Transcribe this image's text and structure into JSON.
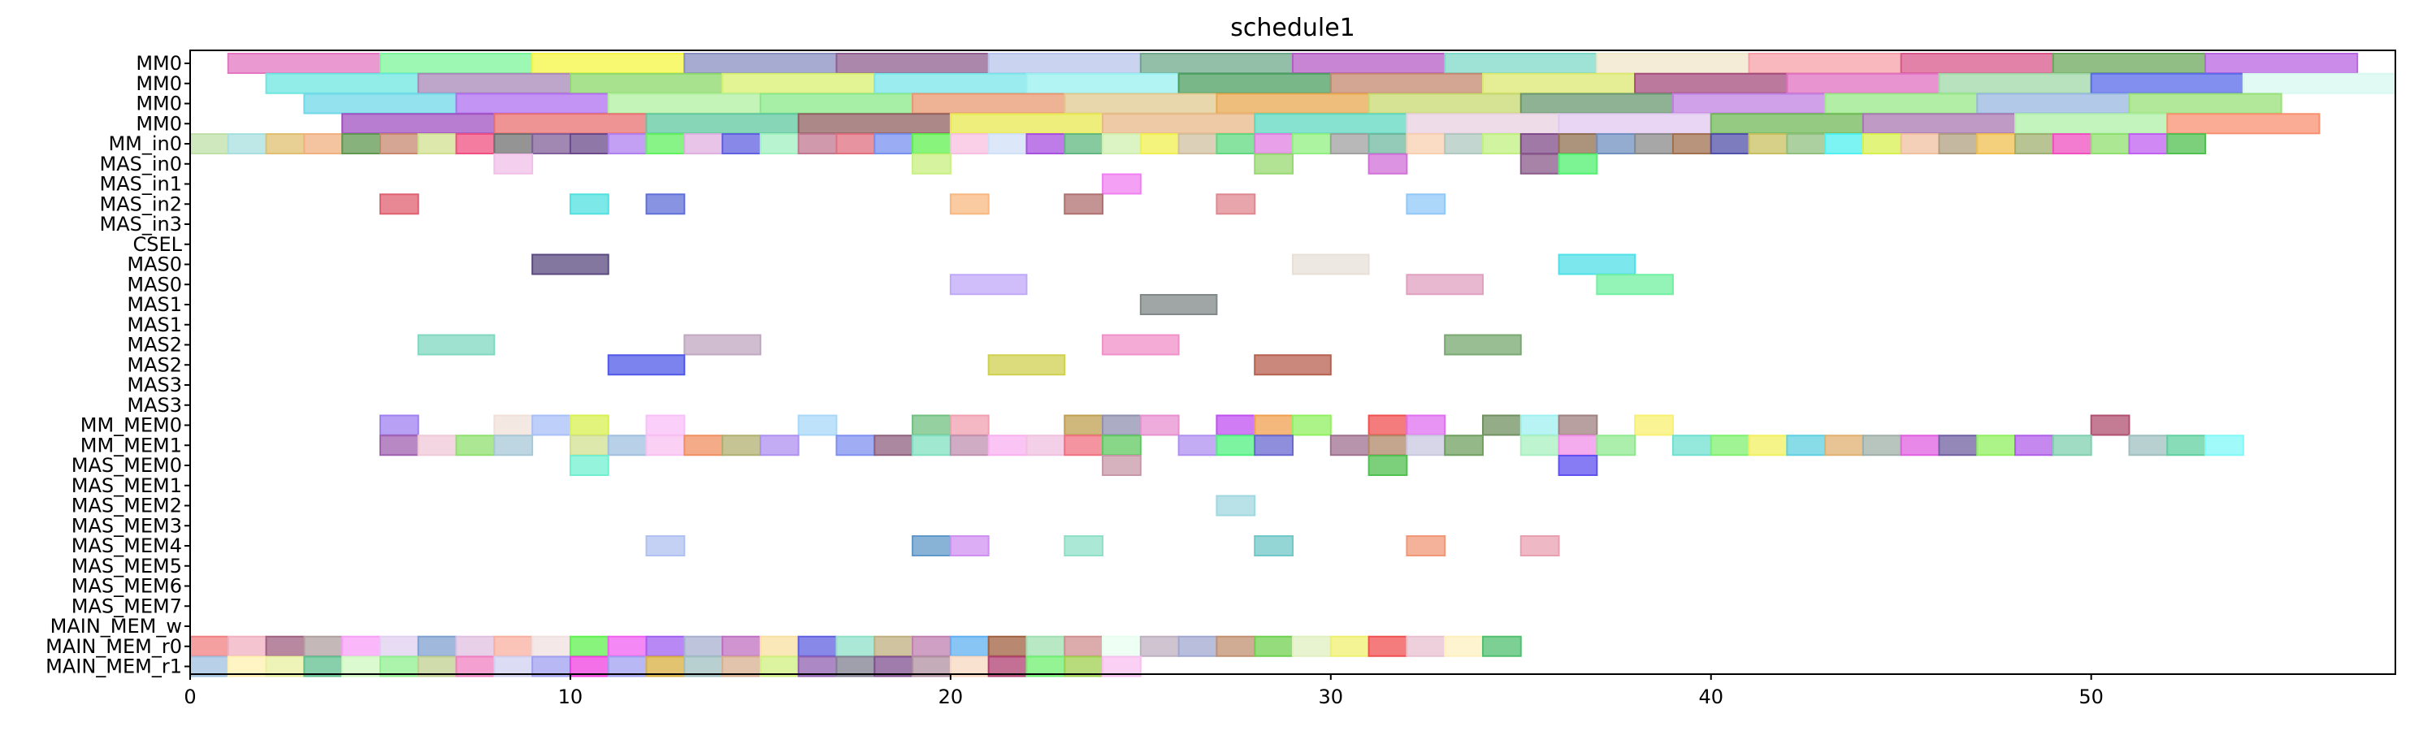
{
  "chart_data": {
    "type": "gantt",
    "title": "schedule1",
    "xlabel": "",
    "ylabel": "",
    "xlim": [
      0,
      58
    ],
    "xticks": [
      0,
      10,
      20,
      30,
      40,
      50
    ],
    "xtick_labels": [
      "0",
      "10",
      "20",
      "30",
      "40",
      "50"
    ],
    "rows": [
      "MM0",
      "MM0",
      "MM0",
      "MM0",
      "MM_in0",
      "MAS_in0",
      "MAS_in1",
      "MAS_in2",
      "MAS_in3",
      "CSEL",
      "MAS0",
      "MAS0",
      "MAS1",
      "MAS1",
      "MAS2",
      "MAS2",
      "MAS3",
      "MAS3",
      "MM_MEM0",
      "MM_MEM1",
      "MAS_MEM0",
      "MAS_MEM1",
      "MAS_MEM2",
      "MAS_MEM3",
      "MAS_MEM4",
      "MAS_MEM5",
      "MAS_MEM6",
      "MAS_MEM7",
      "MAIN_MEM_w",
      "MAIN_MEM_r0",
      "MAIN_MEM_r1"
    ],
    "bars": [
      [
        0,
        1,
        4,
        "#e377c2"
      ],
      [
        0,
        5,
        4,
        "#7cf59a"
      ],
      [
        0,
        9,
        4,
        "#f5f542"
      ],
      [
        0,
        13,
        4,
        "#8a8fc2"
      ],
      [
        0,
        17,
        4,
        "#8f5f8f"
      ],
      [
        0,
        21,
        4,
        "#b8c4ea"
      ],
      [
        0,
        25,
        4,
        "#6fa88a"
      ],
      [
        0,
        29,
        4,
        "#b55cc4"
      ],
      [
        0,
        33,
        4,
        "#7fd8c8"
      ],
      [
        0,
        37,
        4,
        "#f0e6c8"
      ],
      [
        0,
        41,
        4,
        "#f5a0a8"
      ],
      [
        0,
        45,
        4,
        "#d9588c"
      ],
      [
        0,
        49,
        4,
        "#6ca85c"
      ],
      [
        0,
        53,
        4,
        "#b865e0"
      ],
      [
        1,
        2,
        4,
        "#6ee6e0"
      ],
      [
        1,
        6,
        4,
        "#a888b8"
      ],
      [
        1,
        10,
        4,
        "#8cd868"
      ],
      [
        1,
        14,
        4,
        "#d8f070"
      ],
      [
        1,
        18,
        4,
        "#7ae6ea"
      ],
      [
        1,
        22,
        4,
        "#98f0f0"
      ],
      [
        1,
        26,
        4,
        "#4c9e60"
      ],
      [
        1,
        30,
        4,
        "#c48870"
      ],
      [
        1,
        34,
        4,
        "#dce870"
      ],
      [
        1,
        38,
        4,
        "#a44c7c"
      ],
      [
        1,
        42,
        4,
        "#e070c0"
      ],
      [
        1,
        46,
        4,
        "#a0d8a8"
      ],
      [
        1,
        50,
        4,
        "#5a6ae8"
      ],
      [
        1,
        54,
        4,
        "#d8f8f0"
      ],
      [
        2,
        3,
        4,
        "#70d8e8"
      ],
      [
        2,
        7,
        4,
        "#b070f0"
      ],
      [
        2,
        11,
        4,
        "#b0f0a0"
      ],
      [
        2,
        15,
        4,
        "#8ae88a"
      ],
      [
        2,
        19,
        4,
        "#e89870"
      ],
      [
        2,
        23,
        4,
        "#e0c890"
      ],
      [
        2,
        27,
        4,
        "#e8a850"
      ],
      [
        2,
        31,
        4,
        "#c8d870"
      ],
      [
        2,
        35,
        4,
        "#6a9870"
      ],
      [
        2,
        39,
        4,
        "#c080e0"
      ],
      [
        2,
        43,
        4,
        "#98e888"
      ],
      [
        2,
        47,
        4,
        "#98b8e0"
      ],
      [
        2,
        51,
        4,
        "#98e078"
      ],
      [
        3,
        4,
        4,
        "#a050c0"
      ],
      [
        3,
        8,
        4,
        "#e87070"
      ],
      [
        3,
        12,
        4,
        "#60c8a0"
      ],
      [
        3,
        16,
        4,
        "#906060"
      ],
      [
        3,
        20,
        4,
        "#e8e850"
      ],
      [
        3,
        24,
        4,
        "#e8b888"
      ],
      [
        3,
        28,
        4,
        "#60d8c0"
      ],
      [
        3,
        32,
        4,
        "#e8d0e0"
      ],
      [
        3,
        36,
        4,
        "#e0c8f0"
      ],
      [
        3,
        40,
        4,
        "#70b858"
      ],
      [
        3,
        44,
        4,
        "#a878b0"
      ],
      [
        3,
        48,
        4,
        "#b0f0a8"
      ],
      [
        3,
        52,
        4,
        "#f89070"
      ],
      [
        4,
        0,
        1,
        "#c0e0a8"
      ],
      [
        4,
        1,
        1,
        "#a8e0e0"
      ],
      [
        4,
        2,
        1,
        "#e0c070"
      ],
      [
        4,
        3,
        1,
        "#f0b080"
      ],
      [
        4,
        4,
        1,
        "#609850"
      ],
      [
        4,
        5,
        1,
        "#c88870"
      ],
      [
        4,
        6,
        1,
        "#d0e090"
      ],
      [
        4,
        7,
        1,
        "#f05080"
      ],
      [
        4,
        8,
        1,
        "#707070"
      ],
      [
        4,
        9,
        1,
        "#80609a"
      ],
      [
        4,
        10,
        1,
        "#6a4a8a"
      ],
      [
        4,
        11,
        1,
        "#b080f0"
      ],
      [
        4,
        12,
        1,
        "#60f060"
      ],
      [
        4,
        13,
        1,
        "#e0b0e0"
      ],
      [
        4,
        14,
        1,
        "#6060e0"
      ],
      [
        4,
        15,
        1,
        "#a0f0c0"
      ],
      [
        4,
        16,
        1,
        "#c07890"
      ],
      [
        4,
        17,
        1,
        "#e07080"
      ],
      [
        4,
        18,
        1,
        "#7890f0"
      ],
      [
        4,
        19,
        1,
        "#60f050"
      ],
      [
        4,
        20,
        1,
        "#f8c0e0"
      ],
      [
        4,
        21,
        1,
        "#d0e0f8"
      ],
      [
        4,
        22,
        1,
        "#a850e0"
      ],
      [
        4,
        23,
        1,
        "#60b880"
      ],
      [
        4,
        24,
        1,
        "#d0f0b0"
      ],
      [
        4,
        25,
        1,
        "#f0f050"
      ],
      [
        4,
        26,
        1,
        "#d0c0a0"
      ],
      [
        4,
        27,
        1,
        "#60d880"
      ],
      [
        4,
        28,
        1,
        "#e080e0"
      ],
      [
        4,
        29,
        1,
        "#90f080"
      ],
      [
        4,
        30,
        1,
        "#a0a0a0"
      ],
      [
        4,
        31,
        1,
        "#70b8a0"
      ],
      [
        4,
        32,
        1,
        "#f8d0b0"
      ],
      [
        4,
        33,
        1,
        "#b0c8c0"
      ],
      [
        4,
        34,
        1,
        "#c0f080"
      ],
      [
        4,
        35,
        1,
        "#804c8a"
      ],
      [
        4,
        36,
        1,
        "#907050"
      ],
      [
        4,
        37,
        1,
        "#7090c0"
      ],
      [
        4,
        38,
        1,
        "#8a8a8a"
      ],
      [
        4,
        39,
        1,
        "#a07050"
      ],
      [
        4,
        40,
        1,
        "#5050a8"
      ],
      [
        4,
        41,
        1,
        "#c8c060"
      ],
      [
        4,
        42,
        1,
        "#90c080"
      ],
      [
        4,
        43,
        1,
        "#50f0f0"
      ],
      [
        4,
        44,
        1,
        "#d8f050"
      ],
      [
        4,
        45,
        1,
        "#f0c0a0"
      ],
      [
        4,
        46,
        1,
        "#b0a080"
      ],
      [
        4,
        47,
        1,
        "#f0c050"
      ],
      [
        4,
        48,
        1,
        "#a0b070"
      ],
      [
        4,
        49,
        1,
        "#f050c0"
      ],
      [
        4,
        50,
        1,
        "#90e070"
      ],
      [
        4,
        51,
        1,
        "#c060f0"
      ],
      [
        4,
        52,
        1,
        "#50c050"
      ],
      [
        5,
        8,
        1,
        "#f0c0e8"
      ],
      [
        5,
        19,
        1,
        "#c8f080"
      ],
      [
        5,
        28,
        1,
        "#98d870"
      ],
      [
        5,
        31,
        1,
        "#d070d8"
      ],
      [
        5,
        35,
        1,
        "#8a5a8a"
      ],
      [
        5,
        36,
        1,
        "#50f070"
      ],
      [
        6,
        24,
        1,
        "#f080f0"
      ],
      [
        7,
        5,
        1,
        "#e06070"
      ],
      [
        7,
        10,
        1,
        "#50e0e0"
      ],
      [
        7,
        12,
        1,
        "#6070d8"
      ],
      [
        7,
        20,
        1,
        "#f8b880"
      ],
      [
        7,
        23,
        1,
        "#b07070"
      ],
      [
        7,
        27,
        1,
        "#e08890"
      ],
      [
        7,
        32,
        1,
        "#90c8f8"
      ],
      [
        10,
        9,
        2,
        "#5a4a80"
      ],
      [
        10,
        29,
        2,
        "#e8e0d8"
      ],
      [
        10,
        36,
        2,
        "#50e0e8"
      ],
      [
        11,
        20,
        2,
        "#c0a8f8"
      ],
      [
        11,
        32,
        2,
        "#e0a0c0"
      ],
      [
        11,
        37,
        2,
        "#70f0a0"
      ],
      [
        12,
        25,
        2,
        "#808888"
      ],
      [
        14,
        6,
        2,
        "#80d8c0"
      ],
      [
        14,
        13,
        2,
        "#c0a8c0"
      ],
      [
        14,
        24,
        2,
        "#f090c8"
      ],
      [
        14,
        33,
        2,
        "#78a870"
      ],
      [
        15,
        11,
        2,
        "#5058e8"
      ],
      [
        15,
        21,
        2,
        "#d0d050"
      ],
      [
        15,
        28,
        2,
        "#b86050"
      ],
      [
        18,
        5,
        1,
        "#a080f0"
      ],
      [
        18,
        8,
        1,
        "#f0e0d8"
      ],
      [
        18,
        9,
        1,
        "#a8c0f8"
      ],
      [
        18,
        10,
        1,
        "#d8f050"
      ],
      [
        18,
        12,
        1,
        "#f8c0f8"
      ],
      [
        18,
        16,
        1,
        "#a8d8f8"
      ],
      [
        18,
        19,
        1,
        "#70c080"
      ],
      [
        18,
        20,
        1,
        "#f0a0b0"
      ],
      [
        18,
        23,
        1,
        "#c0a050"
      ],
      [
        18,
        24,
        1,
        "#9090b0"
      ],
      [
        18,
        25,
        1,
        "#e890d0"
      ],
      [
        18,
        27,
        1,
        "#c050f0"
      ],
      [
        18,
        28,
        1,
        "#f0a050"
      ],
      [
        18,
        29,
        1,
        "#90f060"
      ],
      [
        18,
        31,
        1,
        "#f05050"
      ],
      [
        18,
        32,
        1,
        "#e070f0"
      ],
      [
        18,
        34,
        1,
        "#709060"
      ],
      [
        18,
        35,
        1,
        "#a0f0f0"
      ],
      [
        18,
        36,
        1,
        "#a08080"
      ],
      [
        18,
        38,
        1,
        "#f8f070"
      ],
      [
        18,
        50,
        1,
        "#b05070"
      ],
      [
        19,
        5,
        1,
        "#a060b0"
      ],
      [
        19,
        6,
        1,
        "#f0c8d8"
      ],
      [
        19,
        7,
        1,
        "#90e070"
      ],
      [
        19,
        8,
        1,
        "#a8c8d8"
      ],
      [
        19,
        10,
        1,
        "#d0e090"
      ],
      [
        19,
        11,
        1,
        "#a0c0e0"
      ],
      [
        19,
        12,
        1,
        "#f8c0f0"
      ],
      [
        19,
        13,
        1,
        "#f09060"
      ],
      [
        19,
        14,
        1,
        "#b0b070"
      ],
      [
        19,
        15,
        1,
        "#b090f0"
      ],
      [
        19,
        17,
        1,
        "#8090f0"
      ],
      [
        19,
        18,
        1,
        "#906080"
      ],
      [
        19,
        19,
        1,
        "#80e0c0"
      ],
      [
        19,
        20,
        1,
        "#c090b0"
      ],
      [
        19,
        21,
        1,
        "#f8b0f0"
      ],
      [
        19,
        22,
        1,
        "#f0c0e0"
      ],
      [
        19,
        23,
        1,
        "#f07080"
      ],
      [
        19,
        24,
        1,
        "#60c860"
      ],
      [
        19,
        26,
        1,
        "#b090f0"
      ],
      [
        19,
        27,
        1,
        "#50f080"
      ],
      [
        19,
        28,
        1,
        "#6868d0"
      ],
      [
        19,
        30,
        1,
        "#a07090"
      ],
      [
        19,
        31,
        1,
        "#b08868"
      ],
      [
        19,
        32,
        1,
        "#c8c8e0"
      ],
      [
        19,
        33,
        1,
        "#70a060"
      ],
      [
        19,
        35,
        1,
        "#a8f0c0"
      ],
      [
        19,
        36,
        1,
        "#f090e8"
      ],
      [
        19,
        37,
        1,
        "#90e890"
      ],
      [
        19,
        39,
        1,
        "#70e0d0"
      ],
      [
        19,
        40,
        1,
        "#80f070"
      ],
      [
        19,
        41,
        1,
        "#f0f060"
      ],
      [
        19,
        42,
        1,
        "#60d0e0"
      ],
      [
        19,
        43,
        1,
        "#e0b070"
      ],
      [
        19,
        44,
        1,
        "#a0b0a8"
      ],
      [
        19,
        45,
        1,
        "#e060e0"
      ],
      [
        19,
        46,
        1,
        "#7060a0"
      ],
      [
        19,
        47,
        1,
        "#90f060"
      ],
      [
        19,
        48,
        1,
        "#b060e8"
      ],
      [
        19,
        49,
        1,
        "#80d0b0"
      ],
      [
        19,
        51,
        1,
        "#a0c0c0"
      ],
      [
        19,
        52,
        1,
        "#60d0a0"
      ],
      [
        19,
        53,
        1,
        "#80f8f8"
      ],
      [
        20,
        10,
        1,
        "#70f0d0"
      ],
      [
        20,
        24,
        1,
        "#c898a8"
      ],
      [
        20,
        31,
        1,
        "#50c050"
      ],
      [
        20,
        36,
        1,
        "#6050f0"
      ],
      [
        22,
        27,
        1,
        "#a0d8e0"
      ],
      [
        24,
        12,
        1,
        "#b0c0f0"
      ],
      [
        24,
        19,
        1,
        "#6098c8"
      ],
      [
        24,
        20,
        1,
        "#d090f0"
      ],
      [
        24,
        23,
        1,
        "#90e0c8"
      ],
      [
        24,
        28,
        1,
        "#70c8c8"
      ],
      [
        24,
        32,
        1,
        "#f09878"
      ],
      [
        24,
        35,
        1,
        "#e8a0b0"
      ],
      [
        29,
        0,
        1,
        "#f08080"
      ],
      [
        29,
        1,
        1,
        "#f0b0c0"
      ],
      [
        29,
        2,
        1,
        "#a06080"
      ],
      [
        29,
        3,
        1,
        "#b0a0a0"
      ],
      [
        29,
        4,
        1,
        "#f8a0f8"
      ],
      [
        29,
        5,
        1,
        "#e0d0f0"
      ],
      [
        29,
        6,
        1,
        "#80a0d0"
      ],
      [
        29,
        7,
        1,
        "#e0c0e0"
      ],
      [
        29,
        8,
        1,
        "#f8b0a0"
      ],
      [
        29,
        9,
        1,
        "#f0e0e0"
      ],
      [
        29,
        10,
        1,
        "#60f050"
      ],
      [
        29,
        11,
        1,
        "#f060f0"
      ],
      [
        29,
        12,
        1,
        "#a060f0"
      ],
      [
        29,
        13,
        1,
        "#a8b0d0"
      ],
      [
        29,
        14,
        1,
        "#c070c0"
      ],
      [
        29,
        15,
        1,
        "#f8e0a0"
      ],
      [
        29,
        16,
        1,
        "#6060e0"
      ],
      [
        29,
        17,
        1,
        "#90e0c8"
      ],
      [
        29,
        18,
        1,
        "#c0b080"
      ],
      [
        29,
        19,
        1,
        "#c080b0"
      ],
      [
        29,
        20,
        1,
        "#60b0f0"
      ],
      [
        29,
        21,
        1,
        "#a06040"
      ],
      [
        29,
        22,
        1,
        "#a0e0b0"
      ],
      [
        29,
        23,
        1,
        "#d09090"
      ],
      [
        29,
        24,
        1,
        "#e8fff0"
      ],
      [
        29,
        25,
        1,
        "#c0b0c0"
      ],
      [
        29,
        26,
        1,
        "#a0a8d0"
      ],
      [
        29,
        27,
        1,
        "#c09070"
      ],
      [
        29,
        28,
        1,
        "#70d050"
      ],
      [
        29,
        29,
        1,
        "#e0f0c0"
      ],
      [
        29,
        30,
        1,
        "#f0f070"
      ],
      [
        29,
        31,
        1,
        "#f05050"
      ],
      [
        29,
        32,
        1,
        "#e8c0d0"
      ],
      [
        29,
        33,
        1,
        "#fff0c0"
      ],
      [
        29,
        34,
        1,
        "#50c070"
      ],
      [
        30,
        0,
        1,
        "#a0c0e0"
      ],
      [
        30,
        1,
        1,
        "#fff0b0"
      ],
      [
        30,
        2,
        1,
        "#e8f0a0"
      ],
      [
        30,
        3,
        1,
        "#60c090"
      ],
      [
        30,
        4,
        1,
        "#d0f8c0"
      ],
      [
        30,
        5,
        1,
        "#90f090"
      ],
      [
        30,
        6,
        1,
        "#c0d090"
      ],
      [
        30,
        7,
        1,
        "#f080c0"
      ],
      [
        30,
        8,
        1,
        "#d0d0f0"
      ],
      [
        30,
        9,
        1,
        "#a0a0f0"
      ],
      [
        30,
        10,
        1,
        "#f040e0"
      ],
      [
        30,
        11,
        1,
        "#a0a0f0"
      ],
      [
        30,
        12,
        1,
        "#d8b040"
      ],
      [
        30,
        13,
        1,
        "#a0c0c0"
      ],
      [
        30,
        14,
        1,
        "#d8b090"
      ],
      [
        30,
        15,
        1,
        "#d0f080"
      ],
      [
        30,
        16,
        1,
        "#9060b0"
      ],
      [
        30,
        17,
        1,
        "#808090"
      ],
      [
        30,
        18,
        1,
        "#805090"
      ],
      [
        30,
        19,
        1,
        "#b090a0"
      ],
      [
        30,
        20,
        1,
        "#f8d8c0"
      ],
      [
        30,
        21,
        1,
        "#b04070"
      ],
      [
        30,
        22,
        1,
        "#70f070"
      ],
      [
        30,
        23,
        1,
        "#a0d050"
      ],
      [
        30,
        24,
        1,
        "#f8c0f0"
      ]
    ]
  }
}
